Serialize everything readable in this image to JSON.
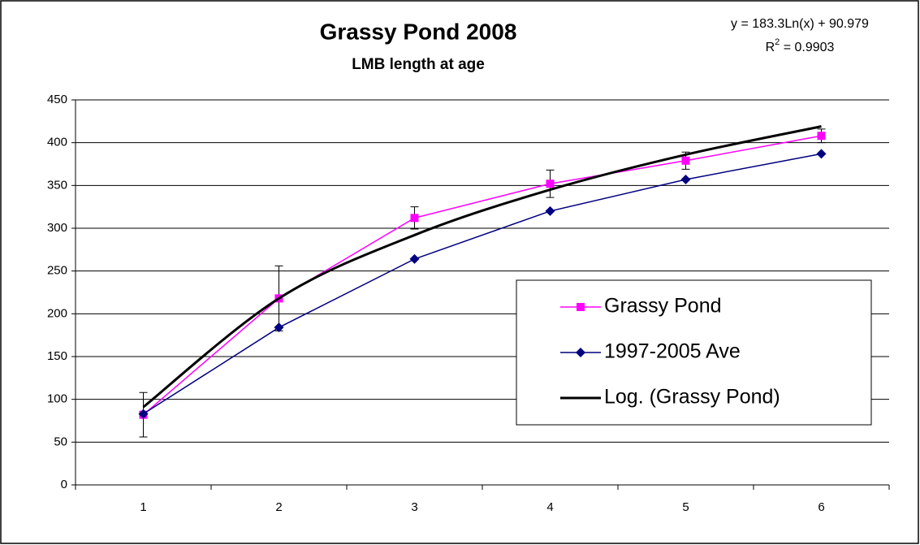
{
  "chart_data": {
    "type": "line",
    "title": "Grassy Pond 2008",
    "subtitle": "LMB length at age",
    "annotations": [
      "y = 183.3Ln(x) + 90.979"
    ],
    "r_squared": {
      "base": "R",
      "sup": "2",
      "rest": " = 0.9903"
    },
    "categories": [
      "1",
      "2",
      "3",
      "4",
      "5",
      "6"
    ],
    "ylim": [
      0,
      450
    ],
    "yticks": [
      0,
      50,
      100,
      150,
      200,
      250,
      300,
      350,
      400,
      450
    ],
    "grid": true,
    "legend": "right",
    "series": [
      {
        "name": "Grassy Pond",
        "color": "#ff00ff",
        "marker": "square",
        "values": [
          82,
          218,
          312,
          352,
          379,
          408
        ],
        "errors": [
          26,
          38,
          13,
          16,
          10,
          8
        ]
      },
      {
        "name": "1997-2005 Ave",
        "color": "#000080",
        "marker": "diamond",
        "values": [
          83,
          184,
          264,
          320,
          357,
          387
        ]
      },
      {
        "name": "Log. (Grassy Pond)",
        "color": "#000000",
        "marker": "none",
        "trend": true,
        "values": [
          91,
          218,
          292,
          345,
          386,
          419
        ]
      }
    ]
  }
}
